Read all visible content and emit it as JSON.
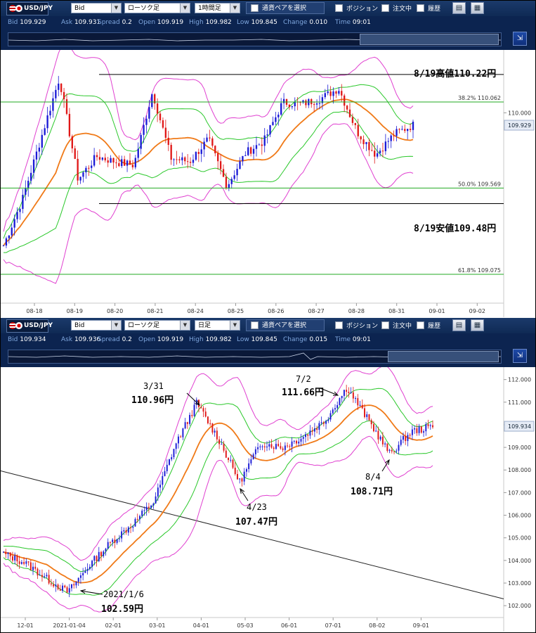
{
  "panels": [
    {
      "toolbar": {
        "pair": "USD/JPY",
        "price_side": "Bid",
        "chart_style": "ローソク足",
        "timeframe": "1時間足",
        "select_pair": "通貨ペアを選択",
        "position": "ポジション",
        "orders": "注文中",
        "history": "履歴"
      },
      "info": {
        "bid_label": "Bid",
        "bid": "109.929",
        "ask_label": "Ask",
        "ask": "109.931",
        "spread_label": "Spread",
        "spread": "0.2",
        "open_label": "Open",
        "open": "109.919",
        "high_label": "High",
        "high": "109.982",
        "low_label": "Low",
        "low": "109.845",
        "change_label": "Change",
        "change": "0.010",
        "time_label": "Time",
        "time": "09:01"
      },
      "annotations": {
        "high_note": "8/19高値110.22円",
        "low_note": "8/19安値109.48円"
      },
      "chart_data": {
        "type": "candlestick",
        "symbol": "USD/JPY",
        "timeframe": "1時間足",
        "x_tick_labels": [
          "08-18",
          "08-19",
          "08-20",
          "08-21",
          "08-24",
          "08-25",
          "08-26",
          "08-27",
          "08-28",
          "08-31",
          "09-01",
          "09-02"
        ],
        "y_tick_labels": [
          "110.000"
        ],
        "current_price_label": "109.929",
        "ylim": [
          108.95,
          110.32
        ],
        "horizontal_lines": [
          {
            "label": "8/19高値110.22円",
            "value": 110.22,
            "color": "#000000"
          },
          {
            "label": "8/19安値109.48円",
            "value": 109.48,
            "color": "#000000"
          },
          {
            "label": "38.2%",
            "value": 110.062,
            "color": "#22aa22"
          },
          {
            "label": "50.0%",
            "value": 109.569,
            "color": "#22aa22"
          },
          {
            "label": "61.8%",
            "value": 109.075,
            "color": "#22aa22"
          }
        ],
        "fibonacci_levels": [
          {
            "ratio": "38.2%",
            "price": "110.062"
          },
          {
            "ratio": "50.0%",
            "price": "109.569"
          },
          {
            "ratio": "61.8%",
            "price": "109.075"
          }
        ],
        "price_path": [
          {
            "date": "08-18",
            "price": 109.24
          },
          {
            "date": "08-18 12h",
            "price": 109.5
          },
          {
            "date": "08-19",
            "price": 109.85
          },
          {
            "date": "08-19 10h",
            "price": 110.2
          },
          {
            "date": "08-19 16h",
            "price": 109.62
          },
          {
            "date": "08-20",
            "price": 109.75
          },
          {
            "date": "08-20 12h",
            "price": 109.72
          },
          {
            "date": "08-21",
            "price": 109.7
          },
          {
            "date": "08-21 08h",
            "price": 110.12
          },
          {
            "date": "08-21 16h",
            "price": 109.74
          },
          {
            "date": "08-24",
            "price": 109.72
          },
          {
            "date": "08-24 12h",
            "price": 109.85
          },
          {
            "date": "08-25",
            "price": 109.58
          },
          {
            "date": "08-25 12h",
            "price": 109.77
          },
          {
            "date": "08-26",
            "price": 109.84
          },
          {
            "date": "08-26 12h",
            "price": 110.06
          },
          {
            "date": "08-27",
            "price": 110.05
          },
          {
            "date": "08-27 12h",
            "price": 110.08
          },
          {
            "date": "08-28",
            "price": 110.14
          },
          {
            "date": "08-28 08h",
            "price": 109.89
          },
          {
            "date": "08-28 20h",
            "price": 109.76
          },
          {
            "date": "08-31",
            "price": 109.88
          },
          {
            "date": "08-31 12h",
            "price": 109.93
          }
        ]
      }
    },
    {
      "toolbar": {
        "pair": "USD/JPY",
        "price_side": "Bid",
        "chart_style": "ローソク足",
        "timeframe": "日足",
        "select_pair": "通貨ペアを選択",
        "position": "ポジション",
        "orders": "注文中",
        "history": "履歴"
      },
      "info": {
        "bid_label": "Bid",
        "bid": "109.934",
        "ask_label": "Ask",
        "ask": "109.936",
        "spread_label": "Spread",
        "spread": "0.2",
        "open_label": "Open",
        "open": "109.919",
        "high_label": "High",
        "high": "109.982",
        "low_label": "Low",
        "low": "109.845",
        "change_label": "Change",
        "change": "0.015",
        "time_label": "Time",
        "time": "09:01"
      },
      "annotations": {
        "mar31_date": "3/31",
        "mar31_price": "110.96円",
        "jul2_date": "7/2",
        "jul2_price": "111.66円",
        "apr23_date": "4/23",
        "apr23_price": "107.47円",
        "aug4_date": "8/4",
        "aug4_price": "108.71円",
        "jan6_date": "2021/1/6",
        "jan6_price": "102.59円"
      },
      "chart_data": {
        "type": "candlestick",
        "symbol": "USD/JPY",
        "timeframe": "日足",
        "x_tick_labels": [
          "12-01",
          "2021-01-04",
          "02-01",
          "03-01",
          "04-01",
          "05-03",
          "06-01",
          "07-01",
          "08-02",
          "09-01"
        ],
        "y_tick_labels": [
          "112.000",
          "111.000",
          "110.000",
          "109.000",
          "108.000",
          "107.000",
          "106.000",
          "105.000",
          "104.000",
          "103.000",
          "102.000"
        ],
        "current_price_label": "109.934",
        "ylim": [
          101.6,
          112.3
        ],
        "trend_line": {
          "from": {
            "date": "12-01",
            "price": 107.96
          },
          "to": {
            "date": "09-01",
            "price": 102.3
          }
        },
        "price_path": [
          {
            "date": "12-01",
            "price": 104.3
          },
          {
            "date": "12-15",
            "price": 103.9
          },
          {
            "date": "2021-01-04",
            "price": 103.2
          },
          {
            "date": "2021-01-06",
            "price": 102.59
          },
          {
            "date": "01-20",
            "price": 103.8
          },
          {
            "date": "02-01",
            "price": 104.8
          },
          {
            "date": "02-15",
            "price": 105.6
          },
          {
            "date": "03-01",
            "price": 106.6
          },
          {
            "date": "03-15",
            "price": 109.1
          },
          {
            "date": "03-31",
            "price": 110.96
          },
          {
            "date": "04-12",
            "price": 109.4
          },
          {
            "date": "04-23",
            "price": 107.47
          },
          {
            "date": "05-03",
            "price": 109.2
          },
          {
            "date": "05-17",
            "price": 109.0
          },
          {
            "date": "06-01",
            "price": 109.5
          },
          {
            "date": "06-15",
            "price": 110.2
          },
          {
            "date": "07-02",
            "price": 111.66
          },
          {
            "date": "07-15",
            "price": 110.2
          },
          {
            "date": "08-04",
            "price": 108.71
          },
          {
            "date": "08-15",
            "price": 109.7
          },
          {
            "date": "08-31",
            "price": 109.93
          }
        ]
      }
    }
  ],
  "colors": {
    "up_candle": "#1a1ad6",
    "down_candle": "#e01818",
    "sma": "#f07a18",
    "bollinger_1sigma": "#2ac82a",
    "bollinger_2sigma": "#e040d0",
    "fibonacci": "#55bb55",
    "toolbar_bg": "#0f2a55"
  }
}
